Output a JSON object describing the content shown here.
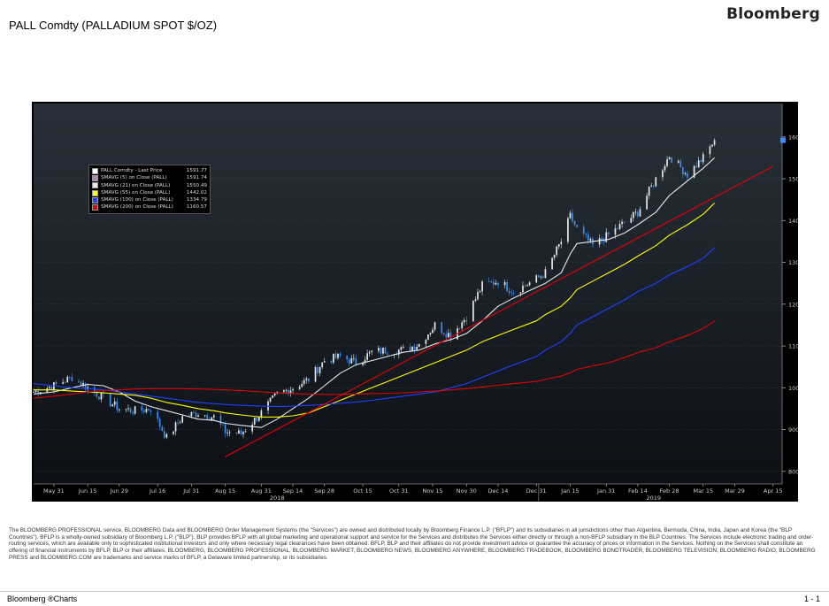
{
  "header": {
    "title": "PALL Comdty (PALLADIUM SPOT $/OZ)",
    "brand": "Bloomberg"
  },
  "legend": [
    {
      "label": "PALL Comdty - Last Price",
      "value": "1591.77",
      "color": "#ffffff"
    },
    {
      "label": "SMAVG (5)  on Close (PALL)",
      "value": "1591.74",
      "color": "#c080c0"
    },
    {
      "label": "SMAVG (21)  on Close (PALL)",
      "value": "1550.49",
      "color": "#e8e8e8"
    },
    {
      "label": "SMAVG (55)  on Close (PALL)",
      "value": "1442.02",
      "color": "#ffff00"
    },
    {
      "label": "SMAVG (100)  on Close (PALL)",
      "value": "1334.79",
      "color": "#2040ff"
    },
    {
      "label": "SMAVG (200)  on Close (PALL)",
      "value": "1160.57",
      "color": "#e00000"
    }
  ],
  "chart_data": {
    "type": "line",
    "title": "PALL Comdty (PALLADIUM SPOT $/OZ)",
    "y_ticks": [
      800,
      900,
      1000,
      1100,
      1200,
      1300,
      1400,
      1500,
      1600
    ],
    "ylim": [
      770,
      1680
    ],
    "x_ticks": [
      "May 31",
      "Jun 15",
      "Jun 29",
      "Jul 16",
      "Jul 31",
      "Aug 15",
      "Aug 31",
      "Sep 14",
      "Sep 28",
      "Oct 15",
      "Oct 31",
      "Nov 15",
      "Nov 30",
      "Dec 14",
      "Dec 31",
      "Jan 15",
      "Jan 31",
      "Feb 14",
      "Feb 28",
      "Mar 15",
      "Mar 29",
      "Apr 15"
    ],
    "year_labels": [
      "2018",
      "2019"
    ],
    "price": {
      "name": "PALL Comdty - Last Price",
      "dates": [
        "2018-05-22",
        "2018-05-31",
        "2018-06-08",
        "2018-06-15",
        "2018-06-22",
        "2018-06-29",
        "2018-07-06",
        "2018-07-13",
        "2018-07-20",
        "2018-07-27",
        "2018-08-03",
        "2018-08-10",
        "2018-08-15",
        "2018-08-22",
        "2018-08-31",
        "2018-09-07",
        "2018-09-14",
        "2018-09-21",
        "2018-09-28",
        "2018-10-05",
        "2018-10-12",
        "2018-10-19",
        "2018-10-26",
        "2018-11-02",
        "2018-11-09",
        "2018-11-16",
        "2018-11-23",
        "2018-11-30",
        "2018-12-07",
        "2018-12-14",
        "2018-12-21",
        "2018-12-31",
        "2019-01-04",
        "2019-01-11",
        "2019-01-15",
        "2019-01-18",
        "2019-01-25",
        "2019-02-01",
        "2019-02-08",
        "2019-02-14",
        "2019-02-22",
        "2019-02-28",
        "2019-03-08",
        "2019-03-15",
        "2019-03-20"
      ],
      "values": [
        990,
        1005,
        1025,
        1000,
        975,
        950,
        945,
        950,
        880,
        930,
        940,
        930,
        895,
        890,
        940,
        985,
        1000,
        1020,
        1065,
        1075,
        1060,
        1085,
        1090,
        1090,
        1105,
        1150,
        1125,
        1170,
        1245,
        1255,
        1230,
        1260,
        1275,
        1350,
        1410,
        1380,
        1340,
        1365,
        1395,
        1420,
        1500,
        1555,
        1510,
        1550,
        1592
      ]
    },
    "series": [
      {
        "name": "SMAVG (5)  on Close (PALL)",
        "color": "#c080c0",
        "values": [
          990,
          995,
          1010,
          1005,
          985,
          960,
          948,
          948,
          905,
          915,
          925,
          930,
          910,
          895,
          920,
          965,
          995,
          1015,
          1050,
          1070,
          1062,
          1080,
          1088,
          1090,
          1100,
          1140,
          1130,
          1160,
          1230,
          1250,
          1235,
          1255,
          1270,
          1330,
          1395,
          1385,
          1350,
          1360,
          1390,
          1415,
          1485,
          1545,
          1520,
          1545,
          1592
        ]
      },
      {
        "name": "SMAVG (21)  on Close (PALL)",
        "color": "#e8e8e8",
        "values": [
          985,
          990,
          1000,
          1008,
          1005,
          990,
          968,
          955,
          945,
          935,
          925,
          922,
          915,
          910,
          905,
          925,
          950,
          975,
          1005,
          1035,
          1055,
          1065,
          1075,
          1085,
          1090,
          1105,
          1115,
          1130,
          1160,
          1195,
          1215,
          1240,
          1250,
          1275,
          1320,
          1345,
          1350,
          1355,
          1370,
          1390,
          1420,
          1460,
          1495,
          1525,
          1550
        ]
      },
      {
        "name": "SMAVG (55)  on Close (PALL)",
        "color": "#ffff00",
        "values": [
          995,
          995,
          992,
          990,
          988,
          985,
          982,
          975,
          965,
          958,
          950,
          945,
          940,
          935,
          930,
          930,
          933,
          940,
          955,
          970,
          985,
          1000,
          1015,
          1030,
          1045,
          1060,
          1075,
          1090,
          1110,
          1125,
          1140,
          1160,
          1175,
          1195,
          1215,
          1235,
          1255,
          1275,
          1295,
          1315,
          1340,
          1365,
          1390,
          1415,
          1442
        ]
      },
      {
        "name": "SMAVG (100)  on Close (PALL)",
        "color": "#2040ff",
        "values": [
          1010,
          1005,
          1000,
          998,
          995,
          990,
          985,
          980,
          975,
          970,
          965,
          962,
          960,
          958,
          956,
          955,
          956,
          958,
          960,
          963,
          966,
          970,
          975,
          980,
          985,
          990,
          1000,
          1010,
          1025,
          1040,
          1055,
          1075,
          1090,
          1110,
          1130,
          1150,
          1170,
          1190,
          1210,
          1230,
          1250,
          1270,
          1290,
          1310,
          1335
        ]
      },
      {
        "name": "SMAVG (200)  on Close (PALL)",
        "color": "#e00000",
        "values": [
          975,
          980,
          985,
          990,
          993,
          995,
          997,
          998,
          998,
          998,
          997,
          996,
          995,
          993,
          990,
          988,
          986,
          985,
          984,
          984,
          985,
          986,
          987,
          988,
          990,
          992,
          995,
          998,
          1002,
          1006,
          1010,
          1015,
          1020,
          1028,
          1036,
          1044,
          1052,
          1060,
          1072,
          1084,
          1096,
          1110,
          1125,
          1142,
          1160
        ]
      }
    ],
    "trendline": {
      "color": "#e00000",
      "start": {
        "date": "2018-08-15",
        "value": 835
      },
      "end": {
        "date": "2019-04-15",
        "value": 1530
      }
    },
    "bg_color": "#1a2129",
    "up_color": "#e6e6e6",
    "down_color": "#3a8ef0"
  },
  "disclaimer": "The BLOOMBERG PROFESSIONAL service, BLOOMBERG Data and BLOOMBERG Order Management Systems (the \"Services\") are owned and distributed locally by Bloomberg Finance L.P. (\"BFLP\") and its subsidiaries in all jurisdictions other than Argentina, Bermuda, China, India, Japan and Korea (the \"BLP Countries\"). BFLP is a wholly-owned subsidiary of Bloomberg L.P. (\"BLP\"). BLP provides BFLP with all global marketing and operational support and service for the Services and distributes the Services either directly or through a non-BFLP subsidiary in the BLP Countries. The Services include electronic trading and order-routing services, which are available only to sophisticated institutional investors and only where necessary legal clearances have been obtained. BFLP, BLP and their affiliates do not provide investment advice or guarantee the accuracy of prices or information in the Services. Nothing on the Services shall constitute an offering of financial instruments by BFLP, BLP or their affiliates. BLOOMBERG, BLOOMBERG PROFESSIONAL, BLOOMBERG MARKET, BLOOMBERG NEWS, BLOOMBERG ANYWHERE, BLOOMBERG TRADEBOOK, BLOOMBERG BONDTRADER, BLOOMBERG TELEVISION, BLOOMBERG RADIO, BLOOMBERG PRESS and BLOOMBERG.COM are trademarks and service marks of BFLP, a Delaware limited partnership, or its subsidiaries.",
  "footer": {
    "left": "Bloomberg ®Charts",
    "right": "1 - 1"
  }
}
